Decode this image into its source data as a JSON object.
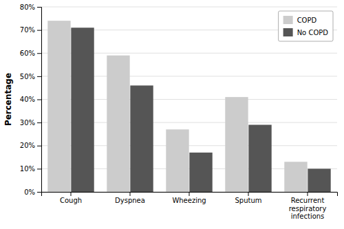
{
  "chart_data": {
    "type": "bar",
    "categories": [
      "Cough",
      "Dyspnea",
      "Wheezing",
      "Sputum",
      "Recurrent\nrespiratory\ninfections"
    ],
    "series": [
      {
        "name": "COPD",
        "color": "#cccccc",
        "values": [
          74,
          59,
          27,
          41,
          13
        ]
      },
      {
        "name": "No COPD",
        "color": "#555555",
        "values": [
          71,
          46,
          17,
          29,
          10
        ]
      }
    ],
    "y_label": "Percentage",
    "ylim": [
      0,
      80
    ],
    "yticks": [
      {
        "value": 0,
        "label": "0%"
      },
      {
        "value": 10,
        "label": "10%"
      },
      {
        "value": 20,
        "label": "20%"
      },
      {
        "value": 30,
        "label": "30%"
      },
      {
        "value": 40,
        "label": "40%"
      },
      {
        "value": 50,
        "label": "50%"
      },
      {
        "value": 60,
        "label": "60%"
      },
      {
        "value": 70,
        "label": "70%"
      },
      {
        "value": 80,
        "label": "80%"
      }
    ],
    "grid": true,
    "legend": "upper right"
  }
}
